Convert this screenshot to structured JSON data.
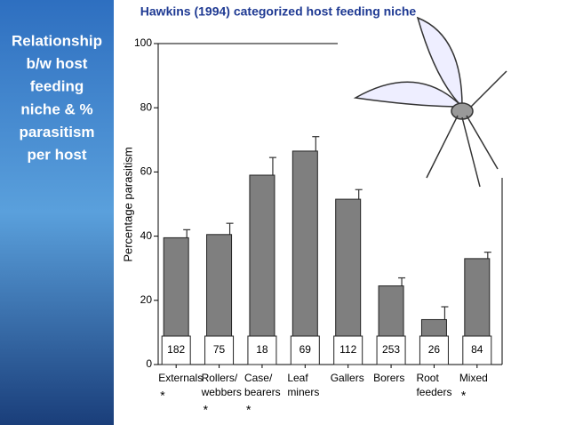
{
  "sidebar": {
    "lines": [
      "Relationship",
      "b/w host",
      "feeding",
      "niche & %",
      "parasitism",
      "per host"
    ]
  },
  "chart_data": {
    "type": "bar",
    "title": "Hawkins (1994) categorized host feeding niche",
    "y_label": "Percentage parasitism",
    "categories": [
      "Externals",
      "Rollers/ webbers",
      "Case/ bearers",
      "Leaf miners",
      "Gallers",
      "Borers",
      "Root feeders",
      "Mixed"
    ],
    "values": [
      39.5,
      40.5,
      59,
      66.5,
      51.5,
      24.5,
      14,
      33
    ],
    "errors": [
      2.5,
      3.5,
      5.5,
      4.5,
      3,
      2.5,
      4,
      2
    ],
    "sample_sizes": [
      "182",
      "75",
      "18",
      "69",
      "112",
      "253",
      "26",
      "84"
    ],
    "notes": [
      "*",
      "*",
      "*",
      null,
      null,
      null,
      null,
      "*"
    ],
    "color": "#7f7f7f",
    "ylim": [
      0,
      100
    ],
    "yticks": [
      0,
      20,
      40,
      60,
      80,
      100
    ]
  }
}
